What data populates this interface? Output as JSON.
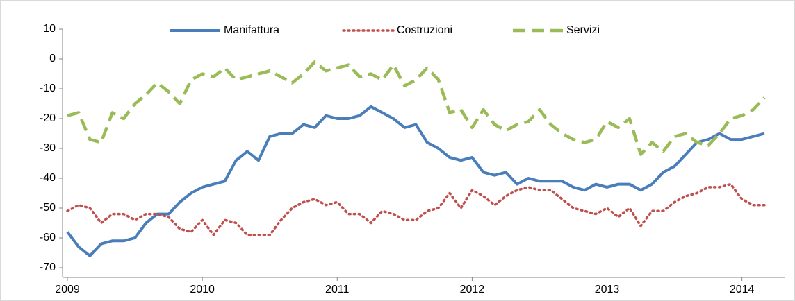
{
  "chart_data": {
    "type": "line",
    "categories": [
      "2009",
      null,
      null,
      null,
      null,
      null,
      null,
      null,
      null,
      null,
      null,
      null,
      "2010",
      null,
      null,
      null,
      null,
      null,
      null,
      null,
      null,
      null,
      null,
      null,
      "2011",
      null,
      null,
      null,
      null,
      null,
      null,
      null,
      null,
      null,
      null,
      null,
      "2012",
      null,
      null,
      null,
      null,
      null,
      null,
      null,
      null,
      null,
      null,
      null,
      "2013",
      null,
      null,
      null,
      null,
      null,
      null,
      null,
      null,
      null,
      null,
      null,
      "2014",
      null,
      null
    ],
    "series": [
      {
        "name": "Manifattura",
        "color": "#4a7ebb",
        "dash": "solid",
        "values": [
          -58,
          -63,
          -66,
          -62,
          -61,
          -61,
          -60,
          -55,
          -52,
          -52,
          -48,
          -45,
          -43,
          -42,
          -41,
          -34,
          -31,
          -34,
          -26,
          -25,
          -25,
          -22,
          -23,
          -19,
          -20,
          -20,
          -19,
          -16,
          -18,
          -20,
          -23,
          -22,
          -28,
          -30,
          -33,
          -34,
          -33,
          -38,
          -39,
          -38,
          -42,
          -40,
          -41,
          -41,
          -41,
          -43,
          -44,
          -42,
          -43,
          -42,
          -42,
          -44,
          -42,
          -38,
          -36,
          -32,
          -28,
          -27,
          -25,
          -27,
          -27,
          -26,
          -25
        ]
      },
      {
        "name": "Costruzioni",
        "color": "#c0504d",
        "dash": "dotted",
        "values": [
          -51,
          -49,
          -50,
          -55,
          -52,
          -52,
          -54,
          -52,
          -52,
          -53,
          -57,
          -58,
          -54,
          -59,
          -54,
          -55,
          -59,
          -59,
          -59,
          -54,
          -50,
          -48,
          -47,
          -49,
          -48,
          -52,
          -52,
          -55,
          -51,
          -52,
          -54,
          -54,
          -51,
          -50,
          -45,
          -50,
          -44,
          -46,
          -49,
          -46,
          -44,
          -43,
          -44,
          -44,
          -47,
          -50,
          -51,
          -52,
          -50,
          -53,
          -50,
          -56,
          -51,
          -51,
          -48,
          -46,
          -45,
          -43,
          -43,
          -42,
          -47,
          -49,
          -49
        ]
      },
      {
        "name": "Servizi",
        "color": "#9bbb59",
        "dash": "dashed",
        "values": [
          -19,
          -18,
          -27,
          -28,
          -18,
          -20,
          -15,
          -12,
          -8,
          -11,
          -15,
          -7,
          -5,
          -6,
          -3,
          -7,
          -6,
          -5,
          -4,
          -6,
          -8,
          -5,
          -1,
          -4,
          -3,
          -2,
          -6,
          -5,
          -7,
          -2,
          -9,
          -7,
          -3,
          -7,
          -18,
          -17,
          -23,
          -17,
          -22,
          -24,
          -22,
          -21,
          -17,
          -22,
          -25,
          -27,
          -28,
          -27,
          -21,
          -23,
          -20,
          -32,
          -28,
          -31,
          -26,
          -25,
          -28,
          -29,
          -25,
          -20,
          -19,
          -17,
          -13
        ]
      }
    ],
    "ylim": [
      -70,
      10
    ],
    "yticks": [
      -70,
      -60,
      -50,
      -40,
      -30,
      -20,
      -10,
      0,
      10
    ],
    "grid": false,
    "legend": "top"
  }
}
